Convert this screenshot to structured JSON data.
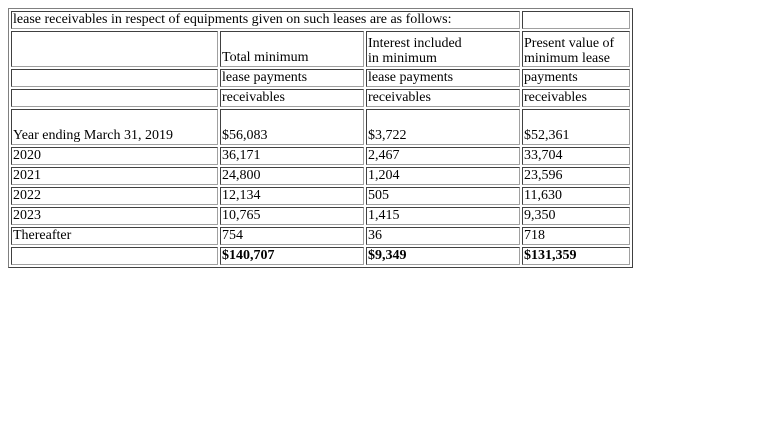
{
  "intro_row": {
    "text": "lease receivables in respect of equipments given on such leases are as follows:"
  },
  "headers": {
    "total": [
      "Total minimum",
      "lease payments",
      "receivables"
    ],
    "interest": [
      "Interest included",
      "in minimum",
      "lease payments",
      "receivables"
    ],
    "present_value": [
      "Present value of",
      "minimum lease",
      "payments",
      "receivables"
    ]
  },
  "rows": [
    {
      "label": "Year ending March 31, 2019",
      "total": "$56,083",
      "interest": "$3,722",
      "pv": "$52,361"
    },
    {
      "label": "2020",
      "total": "36,171",
      "interest": "2,467",
      "pv": "33,704"
    },
    {
      "label": "2021",
      "total": "24,800",
      "interest": "1,204",
      "pv": "23,596"
    },
    {
      "label": "2022",
      "total": "12,134",
      "interest": "505",
      "pv": "11,630"
    },
    {
      "label": "2023",
      "total": "10,765",
      "interest": "1,415",
      "pv": "9,350"
    },
    {
      "label": "Thereafter",
      "total": "754",
      "interest": "36",
      "pv": "718"
    }
  ],
  "totals": {
    "total": "$140,707",
    "interest": "$9,349",
    "pv": "$131,359"
  }
}
